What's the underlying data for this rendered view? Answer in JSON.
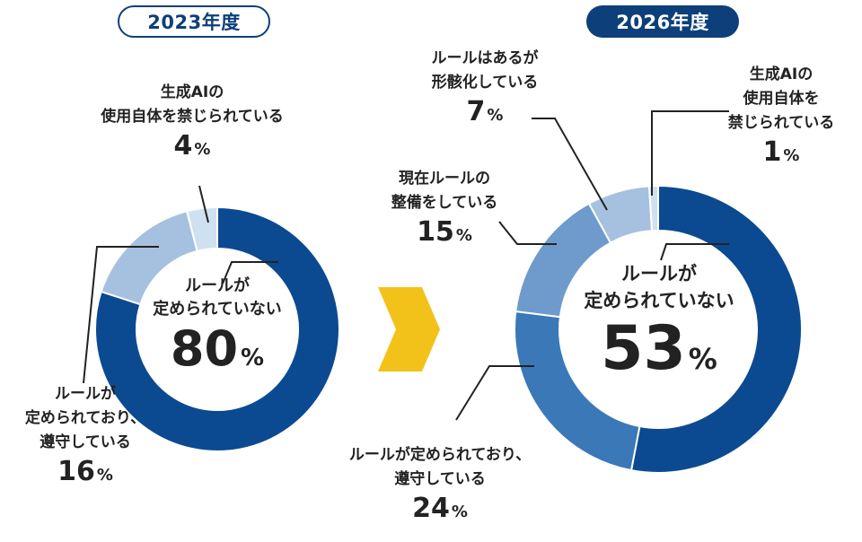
{
  "pills": {
    "left": "2023年度",
    "right": "2026年度"
  },
  "unit": "%",
  "colors": {
    "seg1": "#0b4a91",
    "seg2": "#3a78b8",
    "seg3": "#6e9bcb",
    "seg4": "#a6c1df",
    "seg5": "#cfe0f1",
    "line": "#222222",
    "arrow": "#f3c21a",
    "pill_dark": "#0d3f7a"
  },
  "chart_data": [
    {
      "type": "donut",
      "title": "2023年度",
      "slices": [
        {
          "label": "ルールが定められていない",
          "value": 80,
          "color_key": "seg1"
        },
        {
          "label": "ルールが定められており、遵守している",
          "value": 16,
          "color_key": "seg4"
        },
        {
          "label": "生成AIの使用自体を禁じられている",
          "value": 4,
          "color_key": "seg5"
        }
      ]
    },
    {
      "type": "donut",
      "title": "2026年度",
      "slices": [
        {
          "label": "ルールが定められていない",
          "value": 53,
          "color_key": "seg1"
        },
        {
          "label": "ルールが定められており、遵守している",
          "value": 24,
          "color_key": "seg2"
        },
        {
          "label": "現在ルールの整備をしている",
          "value": 15,
          "color_key": "seg3"
        },
        {
          "label": "ルールはあるが形骸化している",
          "value": 7,
          "color_key": "seg4"
        },
        {
          "label": "生成AIの使用自体を禁じられている",
          "value": 1,
          "color_key": "seg5"
        }
      ]
    }
  ],
  "labels_2023": {
    "center_l1": "ルールが",
    "center_l2": "定められていない",
    "center_pct": "80",
    "ban_l1": "生成AIの",
    "ban_l2": "使用自体を禁じられている",
    "ban_pct": "4",
    "follow_l1": "ルールが",
    "follow_l2": "定められており、",
    "follow_l3": "遵守している",
    "follow_pct": "16"
  },
  "labels_2026": {
    "center_l1": "ルールが",
    "center_l2": "定められていない",
    "center_pct": "53",
    "formal_l1": "ルールはあるが",
    "formal_l2": "形骸化している",
    "formal_pct": "7",
    "ban_l1": "生成AIの",
    "ban_l2": "使用自体を",
    "ban_l3": "禁じられている",
    "ban_pct": "1",
    "prep_l1": "現在ルールの",
    "prep_l2": "整備をしている",
    "prep_pct": "15",
    "follow_l1": "ルールが定められており、",
    "follow_l2": "遵守している",
    "follow_pct": "24"
  }
}
